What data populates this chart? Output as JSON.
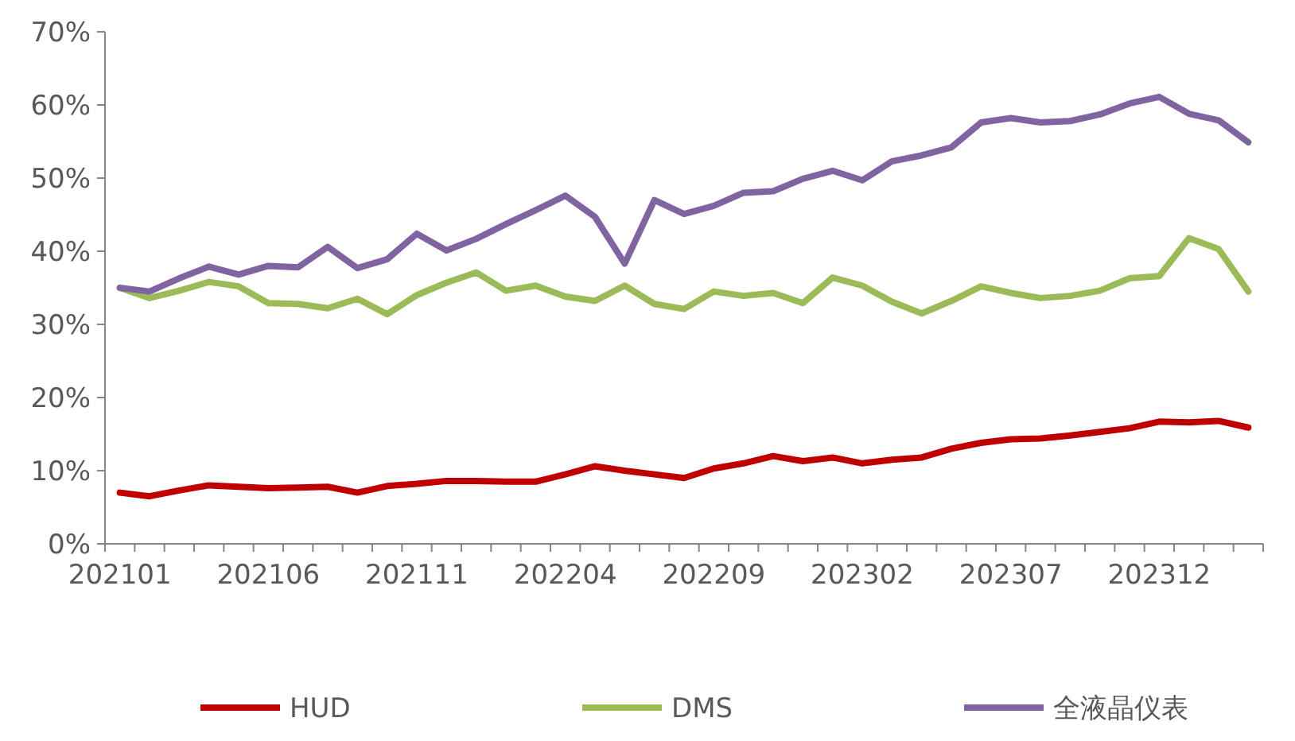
{
  "chart_data": {
    "type": "line",
    "categories": [
      "202101",
      null,
      null,
      null,
      null,
      "202106",
      null,
      null,
      null,
      null,
      "202111",
      null,
      null,
      null,
      null,
      "202204",
      null,
      null,
      null,
      null,
      "202209",
      null,
      null,
      null,
      null,
      "202302",
      null,
      null,
      null,
      null,
      "202307",
      null,
      null,
      null,
      null,
      "202312",
      null,
      null,
      null
    ],
    "ylim": [
      0,
      70
    ],
    "yticks": [
      {
        "value": 0,
        "label": "0%"
      },
      {
        "value": 10,
        "label": "10%"
      },
      {
        "value": 20,
        "label": "20%"
      },
      {
        "value": 30,
        "label": "30%"
      },
      {
        "value": 40,
        "label": "40%"
      },
      {
        "value": 50,
        "label": "50%"
      },
      {
        "value": 60,
        "label": "60%"
      },
      {
        "value": 70,
        "label": "70%"
      }
    ],
    "grid": false,
    "legend": "bottom",
    "marker": "none",
    "line_style": "solid",
    "series": [
      {
        "name": "HUD",
        "color": "#c00000",
        "values": [
          7.0,
          6.5,
          7.3,
          8.0,
          7.8,
          7.6,
          7.7,
          7.8,
          7.0,
          7.9,
          8.2,
          8.6,
          8.6,
          8.5,
          8.5,
          9.5,
          10.6,
          10.0,
          9.5,
          9.0,
          10.3,
          11.0,
          12.0,
          11.3,
          11.8,
          11.0,
          11.5,
          11.8,
          13.0,
          13.8,
          14.3,
          14.4,
          14.8,
          15.3,
          15.8,
          16.7,
          16.6,
          16.8,
          15.9
        ]
      },
      {
        "name": "DMS",
        "color": "#9bbb59",
        "values": [
          35.0,
          33.6,
          34.6,
          35.8,
          35.2,
          32.9,
          32.8,
          32.2,
          33.5,
          31.4,
          34.0,
          35.7,
          37.1,
          34.6,
          35.3,
          33.8,
          33.2,
          35.3,
          32.8,
          32.1,
          34.5,
          33.9,
          34.3,
          32.9,
          36.4,
          35.3,
          33.1,
          31.5,
          33.2,
          35.2,
          34.3,
          33.6,
          33.9,
          34.6,
          36.3,
          36.6,
          41.8,
          40.3,
          34.5
        ]
      },
      {
        "name": "全液晶仪表",
        "color": "#8064a2",
        "values": [
          35.0,
          34.5,
          36.3,
          37.9,
          36.8,
          38.0,
          37.8,
          40.6,
          37.7,
          38.9,
          42.4,
          40.1,
          41.7,
          43.7,
          45.6,
          47.6,
          44.7,
          38.3,
          47.0,
          45.1,
          46.2,
          48.0,
          48.2,
          49.9,
          51.0,
          49.7,
          52.3,
          53.1,
          54.2,
          57.6,
          58.2,
          57.6,
          57.8,
          58.7,
          60.2,
          61.1,
          58.8,
          57.9,
          54.9
        ]
      }
    ]
  }
}
